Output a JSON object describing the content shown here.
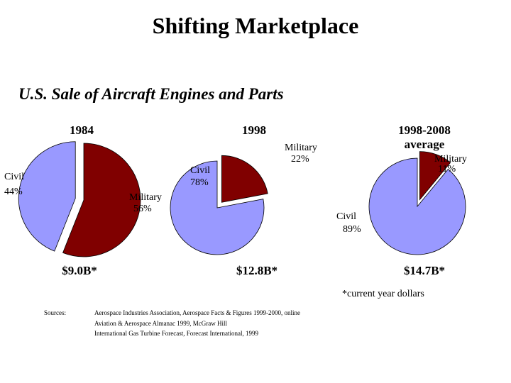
{
  "header": {
    "title": "Shifting Marketplace",
    "subtitle": "U.S. Sale of Aircraft Engines and Parts"
  },
  "chart_data": [
    {
      "type": "pie",
      "title": "1984",
      "categories": [
        "Civil",
        "Military"
      ],
      "values": [
        44,
        56
      ],
      "value_labels": [
        "44%",
        "56%"
      ],
      "colors": [
        "#9999ff",
        "#800000"
      ],
      "explode": [
        1,
        0
      ],
      "total": "$9.0B*"
    },
    {
      "type": "pie",
      "title": "1998",
      "categories": [
        "Civil",
        "Military"
      ],
      "values": [
        78,
        22
      ],
      "value_labels": [
        "78%",
        "22%"
      ],
      "colors": [
        "#9999ff",
        "#800000"
      ],
      "explode": [
        0,
        1
      ],
      "total": "$12.8B*"
    },
    {
      "type": "pie",
      "title": "1998-2008 average",
      "categories": [
        "Civil",
        "Military"
      ],
      "values": [
        89,
        11
      ],
      "value_labels": [
        "89%",
        "11%"
      ],
      "colors": [
        "#9999ff",
        "#800000"
      ],
      "explode": [
        0,
        1
      ],
      "total": "$14.7B*"
    }
  ],
  "footnote": "*current year dollars",
  "sources": {
    "label": "Sources:",
    "lines": [
      "Aerospace Industries Association, Aerospace Facts & Figures 1999-2000, online",
      "Aviation & Aerospace Almanac 1999, McGraw Hill",
      "International Gas Turbine Forecast, Forecast International, 1999"
    ]
  }
}
